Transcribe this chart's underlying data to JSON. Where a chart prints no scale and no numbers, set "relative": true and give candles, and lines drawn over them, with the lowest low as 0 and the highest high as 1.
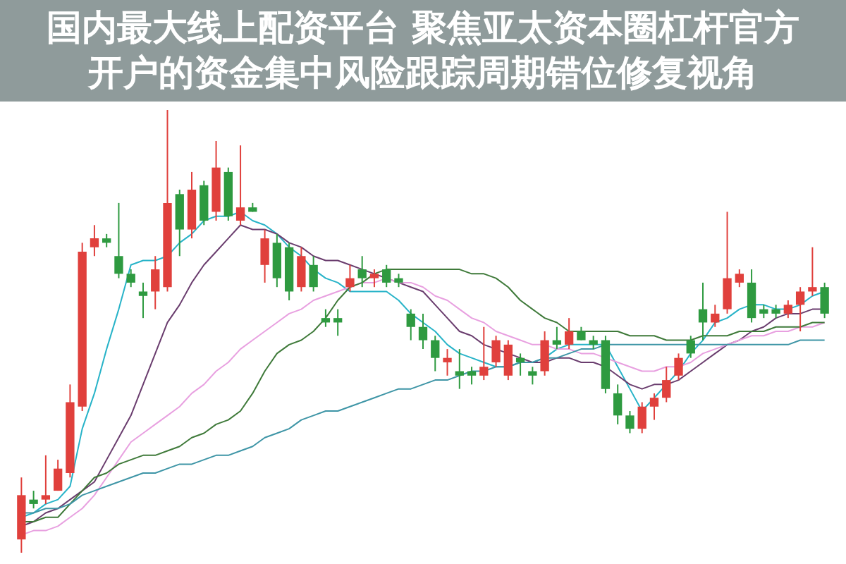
{
  "chart_data": {
    "type": "candlestick",
    "title": "国内最大线上配资平台 聚焦亚太资本圈杠杆官方开户的资金集中风险跟踪周期错位修复视角",
    "relative": true,
    "categories": [
      null,
      null,
      null,
      null,
      null,
      null,
      null,
      null,
      null,
      null,
      null,
      null,
      null,
      null,
      null,
      null,
      null,
      null,
      null,
      null,
      null,
      null,
      null,
      null,
      null,
      null,
      null,
      null,
      null,
      null,
      null,
      null,
      null,
      null,
      null,
      null,
      null,
      null,
      null,
      null,
      null,
      null,
      null,
      null,
      null,
      null,
      null,
      null,
      null,
      null,
      null,
      null,
      null,
      null,
      null,
      null,
      null,
      null,
      null,
      null,
      null,
      null,
      null,
      null,
      null,
      null,
      null
    ],
    "ohlc": [
      [
        0.03,
        0.17,
        0,
        0.13
      ],
      [
        0.12,
        0.14,
        0.1,
        0.11
      ],
      [
        0.12,
        0.22,
        0.11,
        0.13
      ],
      [
        0.14,
        0.21,
        0.14,
        0.19
      ],
      [
        0.18,
        0.38,
        0.17,
        0.34
      ],
      [
        0.33,
        0.7,
        0.32,
        0.68
      ],
      [
        0.69,
        0.74,
        0.67,
        0.71
      ],
      [
        0.71,
        0.72,
        0.69,
        0.7
      ],
      [
        0.67,
        0.79,
        0.62,
        0.63
      ],
      [
        0.63,
        0.64,
        0.6,
        0.61
      ],
      [
        0.59,
        0.61,
        0.53,
        0.58
      ],
      [
        0.59,
        0.67,
        0.55,
        0.64
      ],
      [
        0.6,
        1,
        0.59,
        0.79
      ],
      [
        0.81,
        0.82,
        0.67,
        0.73
      ],
      [
        0.73,
        0.86,
        0.71,
        0.82
      ],
      [
        0.83,
        0.84,
        0.74,
        0.75
      ],
      [
        0.77,
        0.93,
        0.75,
        0.87
      ],
      [
        0.86,
        0.87,
        0.75,
        0.76
      ],
      [
        0.75,
        0.92,
        0.74,
        0.78
      ],
      [
        0.78,
        0.79,
        0.77,
        0.77
      ],
      [
        0.65,
        0.73,
        0.61,
        0.71
      ],
      [
        0.7,
        0.72,
        0.6,
        0.62
      ],
      [
        0.69,
        0.7,
        0.57,
        0.59
      ],
      [
        0.6,
        0.69,
        0.59,
        0.67
      ],
      [
        0.65,
        0.67,
        0.59,
        0.6
      ],
      [
        0.53,
        0.55,
        0.51,
        0.52
      ],
      [
        0.53,
        0.55,
        0.49,
        0.52
      ],
      [
        0.6,
        0.65,
        0.59,
        0.62
      ],
      [
        0.64,
        0.67,
        0.6,
        0.62
      ],
      [
        0.62,
        0.64,
        0.6,
        0.63
      ],
      [
        0.64,
        0.65,
        0.6,
        0.61
      ],
      [
        0.62,
        0.63,
        0.6,
        0.61
      ],
      [
        0.54,
        0.55,
        0.48,
        0.51
      ],
      [
        0.51,
        0.54,
        0.46,
        0.48
      ],
      [
        0.48,
        0.49,
        0.41,
        0.44
      ],
      [
        0.43,
        0.46,
        0.4,
        0.44
      ],
      [
        0.41,
        0.46,
        0.37,
        0.4
      ],
      [
        0.41,
        0.42,
        0.38,
        0.4
      ],
      [
        0.4,
        0.51,
        0.39,
        0.42
      ],
      [
        0.43,
        0.49,
        0.42,
        0.48
      ],
      [
        0.4,
        0.48,
        0.39,
        0.47
      ],
      [
        0.44,
        0.45,
        0.4,
        0.43
      ],
      [
        0.41,
        0.42,
        0.38,
        0.4
      ],
      [
        0.41,
        0.5,
        0.4,
        0.48
      ],
      [
        0.48,
        0.51,
        0.46,
        0.47
      ],
      [
        0.47,
        0.53,
        0.46,
        0.5
      ],
      [
        0.5,
        0.51,
        0.48,
        0.48
      ],
      [
        0.48,
        0.49,
        0.46,
        0.47
      ],
      [
        0.48,
        0.49,
        0.36,
        0.37
      ],
      [
        0.36,
        0.38,
        0.29,
        0.31
      ],
      [
        0.31,
        0.32,
        0.27,
        0.28
      ],
      [
        0.28,
        0.34,
        0.27,
        0.33
      ],
      [
        0.33,
        0.36,
        0.3,
        0.35
      ],
      [
        0.35,
        0.42,
        0.34,
        0.39
      ],
      [
        0.4,
        0.45,
        0.39,
        0.44
      ],
      [
        0.48,
        0.49,
        0.44,
        0.45
      ],
      [
        0.55,
        0.61,
        0.48,
        0.52
      ],
      [
        0.52,
        0.56,
        0.51,
        0.54
      ],
      [
        0.55,
        0.77,
        0.54,
        0.62
      ],
      [
        0.61,
        0.64,
        0.6,
        0.63
      ],
      [
        0.61,
        0.64,
        0.52,
        0.53
      ],
      [
        0.55,
        0.56,
        0.53,
        0.54
      ],
      [
        0.55,
        0.56,
        0.53,
        0.54
      ],
      [
        0.54,
        0.57,
        0.53,
        0.56
      ],
      [
        0.56,
        0.6,
        0.5,
        0.59
      ],
      [
        0.59,
        0.69,
        0.58,
        0.6
      ],
      [
        0.6,
        0.61,
        0.53,
        0.54
      ]
    ],
    "colors": [
      "#e0403c",
      "#2e9a40",
      "#e0403c",
      "#e0403c",
      "#e0403c",
      "#e0403c",
      "#e0403c",
      "#2e9a40",
      "#2e9a40",
      "#2e9a40",
      "#2e9a40",
      "#e0403c",
      "#e0403c",
      "#2e9a40",
      "#e0403c",
      "#2e9a40",
      "#e0403c",
      "#2e9a40",
      "#e0403c",
      "#2e9a40",
      "#e0403c",
      "#2e9a40",
      "#2e9a40",
      "#e0403c",
      "#2e9a40",
      "#2e9a40",
      "#2e9a40",
      "#e0403c",
      "#2e9a40",
      "#e0403c",
      "#2e9a40",
      "#2e9a40",
      "#2e9a40",
      "#2e9a40",
      "#2e9a40",
      "#e0403c",
      "#2e9a40",
      "#2e9a40",
      "#e0403c",
      "#e0403c",
      "#e0403c",
      "#2e9a40",
      "#2e9a40",
      "#e0403c",
      "#2e9a40",
      "#e0403c",
      "#2e9a40",
      "#2e9a40",
      "#2e9a40",
      "#2e9a40",
      "#2e9a40",
      "#e0403c",
      "#e0403c",
      "#e0403c",
      "#e0403c",
      "#2e9a40",
      "#2e9a40",
      "#e0403c",
      "#e0403c",
      "#e0403c",
      "#2e9a40",
      "#2e9a40",
      "#2e9a40",
      "#e0403c",
      "#e0403c",
      "#e0403c",
      "#2e9a40"
    ],
    "series": [
      {
        "type": "line",
        "color": "#27b3c8",
        "values": [
          0.08,
          0.09,
          0.11,
          0.12,
          0.15,
          0.28,
          0.36,
          0.46,
          0.55,
          0.65,
          0.66,
          0.66,
          0.67,
          0.7,
          0.72,
          0.75,
          0.76,
          0.76,
          0.77,
          0.75,
          0.74,
          0.72,
          0.69,
          0.67,
          0.64,
          0.62,
          0.61,
          0.59,
          0.59,
          0.59,
          0.59,
          0.57,
          0.54,
          0.52,
          0.5,
          0.47,
          0.45,
          0.44,
          0.43,
          0.42,
          0.42,
          0.43,
          0.43,
          0.44,
          0.46,
          0.47,
          0.47,
          0.47,
          0.47,
          0.42,
          0.37,
          0.32,
          0.35,
          0.38,
          0.41,
          0.45,
          0.48,
          0.52,
          0.53,
          0.55,
          0.56,
          0.56,
          0.55,
          0.55,
          0.56,
          0.58,
          0.59
        ]
      },
      {
        "type": "line",
        "color": "#6a3d6e",
        "values": [
          0.06,
          0.07,
          0.09,
          0.1,
          0.12,
          0.14,
          0.16,
          0.21,
          0.26,
          0.31,
          0.38,
          0.45,
          0.52,
          0.56,
          0.61,
          0.65,
          0.68,
          0.71,
          0.74,
          0.73,
          0.73,
          0.72,
          0.7,
          0.69,
          0.67,
          0.66,
          0.66,
          0.65,
          0.64,
          0.63,
          0.62,
          0.61,
          0.6,
          0.59,
          0.56,
          0.53,
          0.5,
          0.49,
          0.47,
          0.46,
          0.45,
          0.44,
          0.43,
          0.43,
          0.44,
          0.44,
          0.43,
          0.43,
          0.42,
          0.4,
          0.38,
          0.37,
          0.38,
          0.38,
          0.39,
          0.41,
          0.43,
          0.45,
          0.47,
          0.48,
          0.5,
          0.51,
          0.53,
          0.54,
          0.54,
          0.55,
          0.55
        ]
      },
      {
        "type": "line",
        "color": "#e8a0e0",
        "values": [
          0.04,
          0.05,
          0.05,
          0.06,
          0.08,
          0.1,
          0.13,
          0.17,
          0.21,
          0.25,
          0.27,
          0.29,
          0.31,
          0.33,
          0.36,
          0.38,
          0.41,
          0.43,
          0.46,
          0.48,
          0.5,
          0.52,
          0.54,
          0.55,
          0.57,
          0.58,
          0.59,
          0.6,
          0.61,
          0.61,
          0.62,
          0.61,
          0.61,
          0.6,
          0.58,
          0.57,
          0.55,
          0.53,
          0.52,
          0.5,
          0.49,
          0.48,
          0.47,
          0.47,
          0.46,
          0.46,
          0.45,
          0.45,
          0.44,
          0.43,
          0.42,
          0.41,
          0.41,
          0.42,
          0.42,
          0.43,
          0.45,
          0.46,
          0.47,
          0.48,
          0.49,
          0.49,
          0.5,
          0.5,
          0.51,
          0.51,
          0.52
        ]
      },
      {
        "type": "line",
        "color": "#3f7a3a",
        "values": [
          0.07,
          0.07,
          0.08,
          0.08,
          0.11,
          0.14,
          0.17,
          0.18,
          0.2,
          0.21,
          0.22,
          0.22,
          0.23,
          0.24,
          0.26,
          0.27,
          0.29,
          0.3,
          0.32,
          0.36,
          0.41,
          0.45,
          0.47,
          0.48,
          0.5,
          0.53,
          0.57,
          0.6,
          0.61,
          0.63,
          0.64,
          0.64,
          0.64,
          0.64,
          0.64,
          0.64,
          0.64,
          0.63,
          0.63,
          0.62,
          0.6,
          0.57,
          0.55,
          0.53,
          0.52,
          0.5,
          0.5,
          0.5,
          0.5,
          0.5,
          0.49,
          0.49,
          0.49,
          0.48,
          0.48,
          0.48,
          0.49,
          0.49,
          0.49,
          0.5,
          0.5,
          0.5,
          0.51,
          0.51,
          0.51,
          0.52,
          0.52
        ]
      },
      {
        "type": "line",
        "color": "#3e95a6",
        "values": [
          0.09,
          0.09,
          0.1,
          0.1,
          0.11,
          0.13,
          0.14,
          0.15,
          0.16,
          0.17,
          0.18,
          0.18,
          0.19,
          0.2,
          0.2,
          0.21,
          0.22,
          0.22,
          0.23,
          0.24,
          0.26,
          0.27,
          0.28,
          0.3,
          0.31,
          0.32,
          0.32,
          0.33,
          0.34,
          0.35,
          0.36,
          0.37,
          0.37,
          0.38,
          0.39,
          0.39,
          0.4,
          0.41,
          0.41,
          0.42,
          0.42,
          0.43,
          0.43,
          0.44,
          0.44,
          0.45,
          0.46,
          0.46,
          0.47,
          0.47,
          0.47,
          0.47,
          0.47,
          0.47,
          0.47,
          0.47,
          0.47,
          0.47,
          0.47,
          0.47,
          0.47,
          0.47,
          0.47,
          0.47,
          0.48,
          0.48,
          0.48
        ]
      }
    ]
  }
}
